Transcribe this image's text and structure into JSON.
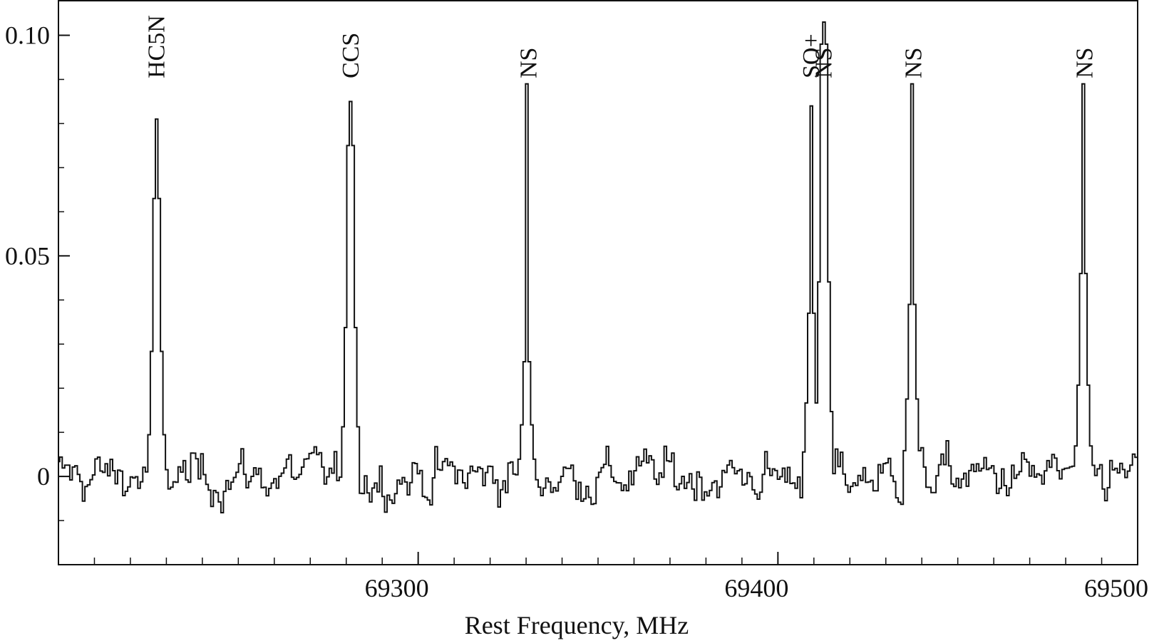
{
  "chart_data": {
    "type": "line",
    "title": "",
    "xlabel": "Rest Frequency, MHz",
    "ylabel": "",
    "xlim": [
      69200,
      69500
    ],
    "ylim": [
      -0.02,
      0.108
    ],
    "grid": false,
    "legend": "none",
    "x_ticks": [
      69300,
      69400,
      69500
    ],
    "y_ticks": [
      0,
      0.05,
      0.1
    ],
    "y_tick_labels": [
      "0",
      "0.05",
      "0.10"
    ],
    "x_minor_step": 10,
    "y_minor_step": 0.01,
    "baseline": {
      "noise_rms": 0.0045,
      "step_mhz": 0.7
    },
    "peaks": [
      {
        "label": "HC5N",
        "x": 69227.0,
        "y": 0.081,
        "shoulder": 0.063
      },
      {
        "label": "CCS",
        "x": 69281.0,
        "y": 0.085,
        "shoulder": 0.075
      },
      {
        "label": "NS",
        "x": 69330.5,
        "y": 0.089,
        "shoulder": 0.026
      },
      {
        "label": "SO+",
        "x": 69409.0,
        "y": 0.084,
        "shoulder": 0.037
      },
      {
        "label": "NS",
        "x": 69412.5,
        "y": 0.103,
        "shoulder": 0.098
      },
      {
        "label": "NS",
        "x": 69437.5,
        "y": 0.089,
        "shoulder": 0.039
      },
      {
        "label": "NS",
        "x": 69485.0,
        "y": 0.089,
        "shoulder": 0.046
      }
    ],
    "series": [
      {
        "values_note": "",
        "color": "#111111"
      }
    ]
  }
}
